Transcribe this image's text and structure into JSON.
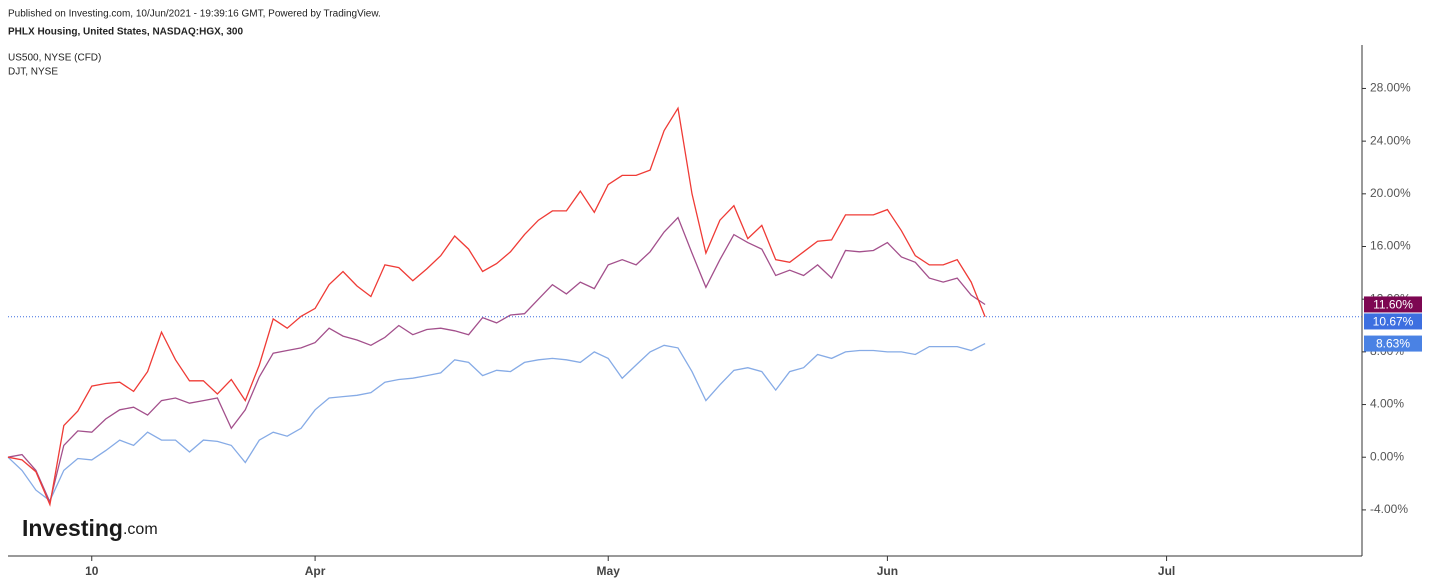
{
  "chart_data": {
    "type": "line",
    "published": "Published on Investing.com, 10/Jun/2021 - 19:39:16 GMT, Powered by TradingView.",
    "logo": {
      "main": "Investing",
      "suffix": ".com"
    },
    "categories": [
      null,
      null,
      null,
      null,
      null,
      null,
      "10",
      null,
      null,
      null,
      null,
      null,
      null,
      null,
      null,
      null,
      null,
      null,
      null,
      null,
      null,
      null,
      "Apr",
      null,
      null,
      null,
      null,
      null,
      null,
      null,
      null,
      null,
      null,
      null,
      null,
      null,
      null,
      null,
      null,
      null,
      null,
      null,
      null,
      "May",
      null,
      null,
      null,
      null,
      null,
      null,
      null,
      null,
      null,
      null,
      null,
      null,
      null,
      null,
      null,
      null,
      null,
      null,
      null,
      "Jun",
      null,
      null,
      null,
      null,
      null,
      null,
      null,
      null,
      null,
      null,
      null,
      null,
      null,
      null,
      null,
      null,
      null,
      null,
      null,
      "Jul",
      null,
      null,
      null,
      null,
      null,
      null,
      null,
      null,
      null,
      null,
      null,
      null,
      null,
      null
    ],
    "ylim": [
      -7.5,
      31.3
    ],
    "yticks": [
      {
        "value": -4,
        "label": "-4.00%"
      },
      {
        "value": 0,
        "label": "0.00%"
      },
      {
        "value": 4,
        "label": "4.00%"
      },
      {
        "value": 8,
        "label": "8.00%"
      },
      {
        "value": 12,
        "label": "12.00%"
      },
      {
        "value": 16,
        "label": "16.00%"
      },
      {
        "value": 20,
        "label": "20.00%"
      },
      {
        "value": 24,
        "label": "24.00%"
      },
      {
        "value": 28,
        "label": "28.00%"
      }
    ],
    "series": [
      {
        "name": "PHLX Housing, United States, NASDAQ:HGX, 300",
        "color": "#ef3b36",
        "tag_color": "#3d6fe0",
        "price_line": true,
        "values": [
          0,
          -0.2,
          -1.1,
          -3.6,
          2.4,
          3.5,
          5.4,
          5.6,
          5.7,
          5.0,
          6.5,
          9.5,
          7.4,
          5.8,
          5.8,
          4.8,
          5.9,
          4.3,
          7.0,
          10.5,
          9.8,
          10.7,
          11.3,
          13.1,
          14.1,
          13.0,
          12.2,
          14.6,
          14.4,
          13.4,
          14.3,
          15.3,
          16.8,
          15.8,
          14.1,
          14.7,
          15.6,
          16.9,
          18.0,
          18.7,
          18.7,
          20.2,
          18.6,
          20.7,
          21.4,
          21.4,
          21.8,
          24.8,
          26.5,
          20.0,
          15.5,
          18.0,
          19.1,
          16.6,
          17.6,
          15.0,
          14.8,
          15.6,
          16.4,
          16.5,
          18.4,
          18.4,
          18.4,
          18.8,
          17.2,
          15.3,
          14.6,
          14.6,
          15.0,
          13.3,
          10.67,
          null,
          null,
          null,
          null,
          null,
          null,
          null,
          null,
          null,
          null,
          null,
          null,
          null,
          null,
          null,
          null,
          null,
          null,
          null,
          null,
          null,
          null,
          null,
          null,
          null,
          null,
          null
        ],
        "value_labels": [
          null,
          null,
          null,
          null,
          null,
          null,
          null,
          null,
          null,
          null,
          null,
          null,
          null,
          null,
          null,
          null,
          null,
          null,
          null,
          null,
          null,
          null,
          null,
          null,
          null,
          null,
          null,
          null,
          null,
          null,
          null,
          null,
          null,
          null,
          null,
          null,
          null,
          null,
          null,
          null,
          null,
          null,
          null,
          null,
          null,
          null,
          null,
          null,
          null,
          null,
          null,
          null,
          null,
          null,
          null,
          null,
          null,
          null,
          null,
          null,
          null,
          null,
          null,
          null,
          null,
          null,
          null,
          null,
          null,
          null,
          "10.67%",
          null,
          null,
          null,
          null,
          null,
          null,
          null,
          null,
          null,
          null,
          null,
          null,
          null,
          null,
          null,
          null,
          null,
          null,
          null,
          null,
          null,
          null,
          null,
          null,
          null,
          null,
          null
        ]
      },
      {
        "name": "US500, NYSE (CFD)",
        "color": "#86abe6",
        "tag_color": "#4a82e4",
        "values": [
          0,
          -1.0,
          -2.5,
          -3.3,
          -1.0,
          -0.1,
          -0.2,
          0.5,
          1.3,
          0.9,
          1.9,
          1.3,
          1.3,
          0.4,
          1.3,
          1.2,
          0.9,
          -0.4,
          1.3,
          1.9,
          1.6,
          2.2,
          3.6,
          4.5,
          4.6,
          4.7,
          4.9,
          5.7,
          5.9,
          6.0,
          6.2,
          6.4,
          7.4,
          7.2,
          6.2,
          6.6,
          6.5,
          7.2,
          7.4,
          7.5,
          7.4,
          7.2,
          8.0,
          7.5,
          6.0,
          7.0,
          8.0,
          8.5,
          8.3,
          6.5,
          4.3,
          5.5,
          6.6,
          6.8,
          6.5,
          5.1,
          6.5,
          6.8,
          7.8,
          7.5,
          8.0,
          8.1,
          8.1,
          8.0,
          8.0,
          7.8,
          8.4,
          8.4,
          8.4,
          8.1,
          8.63,
          null,
          null,
          null,
          null,
          null,
          null,
          null,
          null,
          null,
          null,
          null,
          null,
          null,
          null,
          null,
          null,
          null,
          null,
          null,
          null,
          null,
          null,
          null,
          null,
          null,
          null,
          null
        ],
        "value_labels": [
          null,
          null,
          null,
          null,
          null,
          null,
          null,
          null,
          null,
          null,
          null,
          null,
          null,
          null,
          null,
          null,
          null,
          null,
          null,
          null,
          null,
          null,
          null,
          null,
          null,
          null,
          null,
          null,
          null,
          null,
          null,
          null,
          null,
          null,
          null,
          null,
          null,
          null,
          null,
          null,
          null,
          null,
          null,
          null,
          null,
          null,
          null,
          null,
          null,
          null,
          null,
          null,
          null,
          null,
          null,
          null,
          null,
          null,
          null,
          null,
          null,
          null,
          null,
          null,
          null,
          null,
          null,
          null,
          null,
          null,
          "8.63%",
          null,
          null,
          null,
          null,
          null,
          null,
          null,
          null,
          null,
          null,
          null,
          null,
          null,
          null,
          null,
          null,
          null,
          null,
          null,
          null,
          null,
          null,
          null,
          null,
          null,
          null,
          null
        ]
      },
      {
        "name": "DJT, NYSE",
        "color": "#a3508c",
        "tag_color": "#7d0752",
        "values": [
          0,
          0.2,
          -1.0,
          -3.4,
          0.9,
          2.0,
          1.9,
          2.9,
          3.6,
          3.8,
          3.2,
          4.3,
          4.5,
          4.1,
          4.3,
          4.5,
          2.2,
          3.6,
          6.1,
          7.9,
          8.1,
          8.3,
          8.7,
          9.8,
          9.2,
          8.9,
          8.5,
          9.1,
          10.0,
          9.3,
          9.7,
          9.8,
          9.6,
          9.3,
          10.6,
          10.2,
          10.8,
          10.9,
          12.0,
          13.1,
          12.4,
          13.3,
          12.8,
          14.6,
          15.0,
          14.6,
          15.6,
          17.1,
          18.2,
          15.5,
          12.9,
          15.0,
          16.9,
          16.3,
          15.8,
          13.8,
          14.2,
          13.8,
          14.6,
          13.6,
          15.7,
          15.6,
          15.7,
          16.3,
          15.2,
          14.8,
          13.6,
          13.3,
          13.6,
          12.3,
          11.6,
          null,
          null,
          null,
          null,
          null,
          null,
          null,
          null,
          null,
          null,
          null,
          null,
          null,
          null,
          null,
          null,
          null,
          null,
          null,
          null,
          null,
          null,
          null,
          null,
          null,
          null,
          null
        ],
        "value_labels": [
          null,
          null,
          null,
          null,
          null,
          null,
          null,
          null,
          null,
          null,
          null,
          null,
          null,
          null,
          null,
          null,
          null,
          null,
          null,
          null,
          null,
          null,
          null,
          null,
          null,
          null,
          null,
          null,
          null,
          null,
          null,
          null,
          null,
          null,
          null,
          null,
          null,
          null,
          null,
          null,
          null,
          null,
          null,
          null,
          null,
          null,
          null,
          null,
          null,
          null,
          null,
          null,
          null,
          null,
          null,
          null,
          null,
          null,
          null,
          null,
          null,
          null,
          null,
          null,
          null,
          null,
          null,
          null,
          null,
          null,
          "11.60%",
          null,
          null,
          null,
          null,
          null,
          null,
          null,
          null,
          null,
          null,
          null,
          null,
          null,
          null,
          null,
          null,
          null,
          null,
          null,
          null,
          null,
          null,
          null,
          null,
          null,
          null,
          null
        ]
      }
    ]
  }
}
